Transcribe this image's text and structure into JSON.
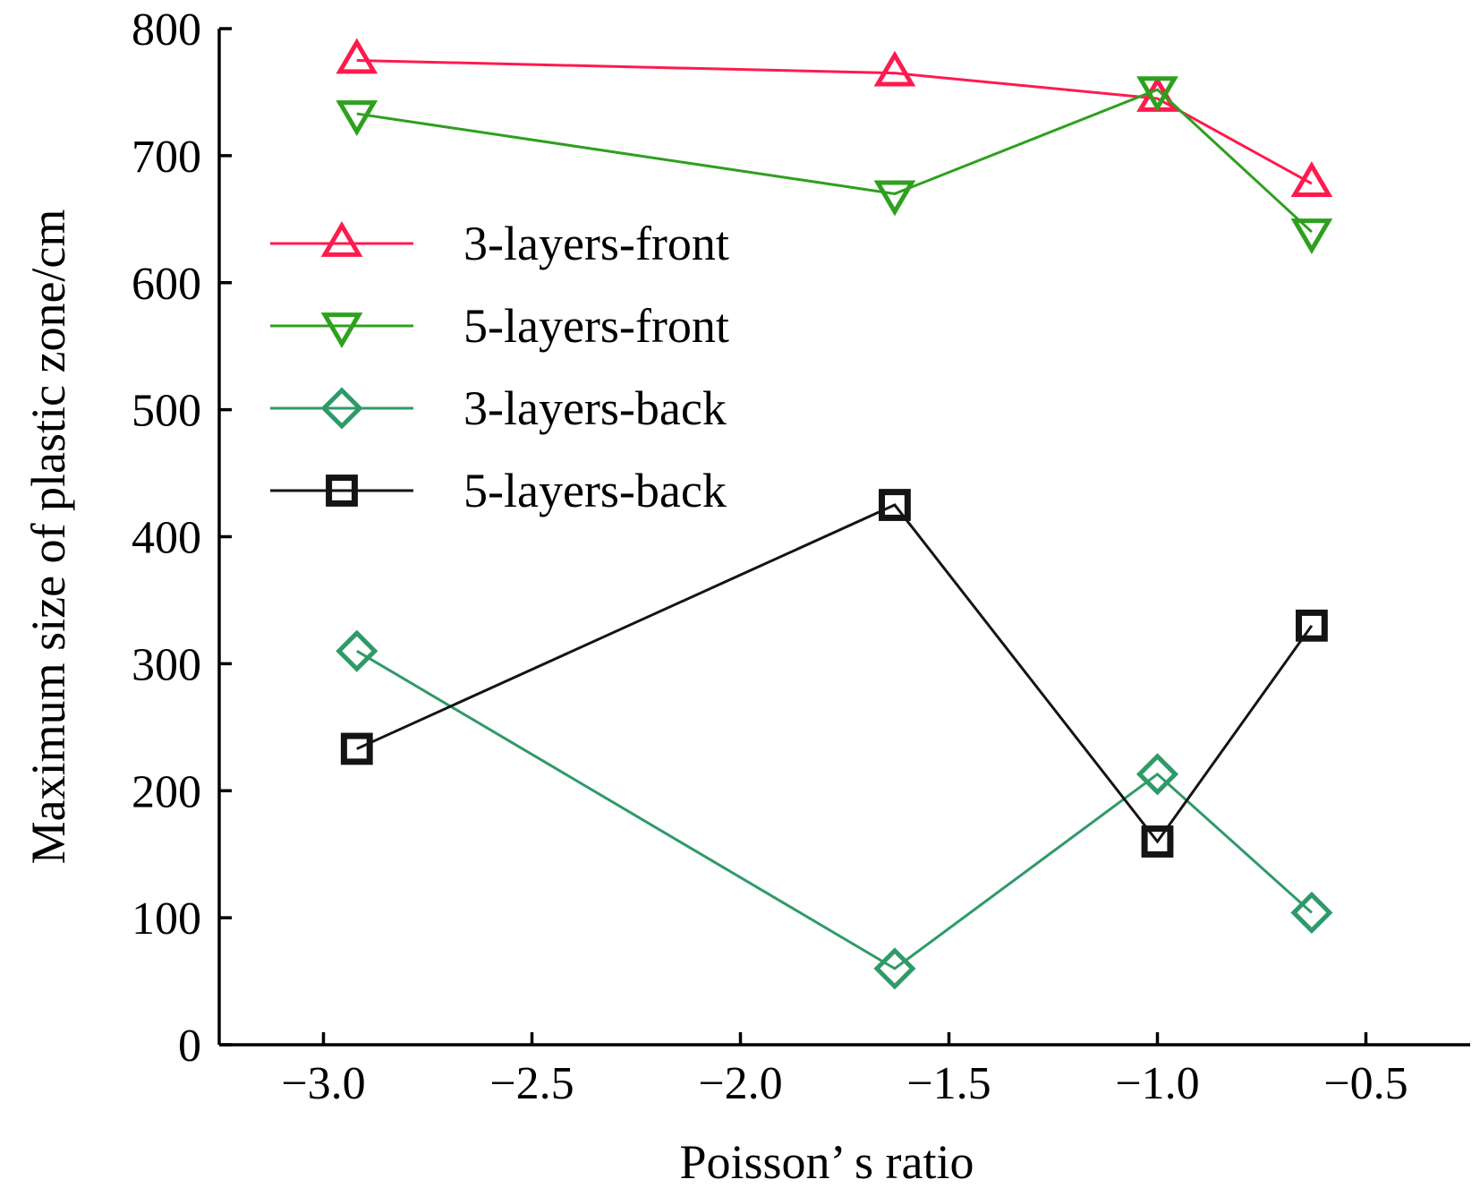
{
  "chart_data": {
    "type": "line",
    "title": "",
    "xlabel": "Poisson’ s ratio",
    "ylabel": "Maximum size of plastic zone/cm",
    "xlim": [
      -3.25,
      -0.25
    ],
    "ylim": [
      0,
      800
    ],
    "xticks": [
      -3.0,
      -2.5,
      -2.0,
      -1.5,
      -1.0,
      -0.5
    ],
    "xtick_labels": [
      "−3.0",
      "−2.5",
      "−2.0",
      "−1.5",
      "−1.0",
      "−0.5"
    ],
    "yticks": [
      0,
      100,
      200,
      300,
      400,
      500,
      600,
      700,
      800
    ],
    "ytick_labels": [
      "0",
      "100",
      "200",
      "300",
      "400",
      "500",
      "600",
      "700",
      "800"
    ],
    "grid": false,
    "legend_position": "upper-left",
    "series": [
      {
        "name": "3-layers-front",
        "marker": "triangle-up",
        "color": "#ff1a4d",
        "x": [
          -2.92,
          -1.63,
          -1.0,
          -0.63
        ],
        "y": [
          775,
          765,
          745,
          678
        ]
      },
      {
        "name": "5-layers-front",
        "marker": "triangle-down",
        "color": "#2ea01e",
        "x": [
          -2.92,
          -1.63,
          -1.0,
          -0.63
        ],
        "y": [
          733,
          670,
          752,
          640
        ]
      },
      {
        "name": "3-layers-back",
        "marker": "diamond",
        "color": "#2e9a68",
        "x": [
          -2.92,
          -1.63,
          -1.0,
          -0.63
        ],
        "y": [
          310,
          60,
          213,
          104
        ]
      },
      {
        "name": "5-layers-back",
        "marker": "square",
        "color": "#141414",
        "x": [
          -2.92,
          -1.63,
          -1.0,
          -0.63
        ],
        "y": [
          233,
          425,
          160,
          330
        ]
      }
    ]
  }
}
